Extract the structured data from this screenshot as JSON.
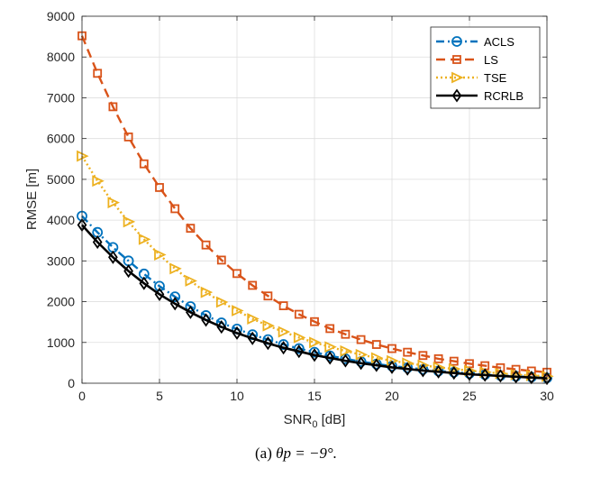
{
  "caption": {
    "prefix": "(a) ",
    "math": "θp = −9°."
  },
  "chart_data": {
    "type": "line",
    "xlabel": "SNR0 [dB]",
    "xlabel_main": "SNR",
    "xlabel_sub": "0",
    "xlabel_unit": " [dB]",
    "ylabel": "RMSE [m]",
    "xlim": [
      0,
      30
    ],
    "ylim": [
      0,
      9000
    ],
    "xticks": [
      0,
      5,
      10,
      15,
      20,
      25,
      30
    ],
    "yticks": [
      0,
      1000,
      2000,
      3000,
      4000,
      5000,
      6000,
      7000,
      8000,
      9000
    ],
    "grid": true,
    "legend_position": "top-right",
    "x": [
      0,
      1,
      2,
      3,
      4,
      5,
      6,
      7,
      8,
      9,
      10,
      11,
      12,
      13,
      14,
      15,
      16,
      17,
      18,
      19,
      20,
      21,
      22,
      23,
      24,
      25,
      26,
      27,
      28,
      29,
      30
    ],
    "series": [
      {
        "name": "ACLS",
        "color": "#0072BD",
        "linestyle": "dashdot",
        "marker": "circle",
        "values": [
          4100,
          3700,
          3330,
          3000,
          2680,
          2380,
          2120,
          1880,
          1660,
          1480,
          1330,
          1190,
          1070,
          950,
          850,
          760,
          670,
          600,
          530,
          470,
          420,
          380,
          340,
          300,
          270,
          240,
          210,
          190,
          170,
          150,
          130
        ]
      },
      {
        "name": "LS",
        "color": "#D95319",
        "linestyle": "dashed",
        "marker": "square",
        "values": [
          8520,
          7600,
          6780,
          6040,
          5380,
          4800,
          4280,
          3800,
          3390,
          3020,
          2690,
          2400,
          2140,
          1900,
          1690,
          1510,
          1340,
          1200,
          1070,
          950,
          850,
          760,
          680,
          600,
          540,
          480,
          430,
          380,
          340,
          300,
          270
        ]
      },
      {
        "name": "TSE",
        "color": "#EDB120",
        "linestyle": "dotted",
        "marker": "triangle-right",
        "values": [
          5570,
          4960,
          4430,
          3960,
          3530,
          3150,
          2810,
          2510,
          2230,
          1990,
          1780,
          1580,
          1410,
          1260,
          1120,
          1000,
          890,
          790,
          700,
          620,
          550,
          490,
          440,
          390,
          350,
          310,
          270,
          240,
          210,
          190,
          170
        ]
      },
      {
        "name": "RCRLB",
        "color": "#000000",
        "linestyle": "solid",
        "marker": "diamond",
        "values": [
          3880,
          3460,
          3090,
          2750,
          2450,
          2180,
          1950,
          1740,
          1550,
          1380,
          1230,
          1100,
          980,
          870,
          780,
          690,
          620,
          550,
          490,
          440,
          390,
          350,
          310,
          280,
          250,
          220,
          200,
          180,
          160,
          140,
          120
        ]
      }
    ]
  }
}
